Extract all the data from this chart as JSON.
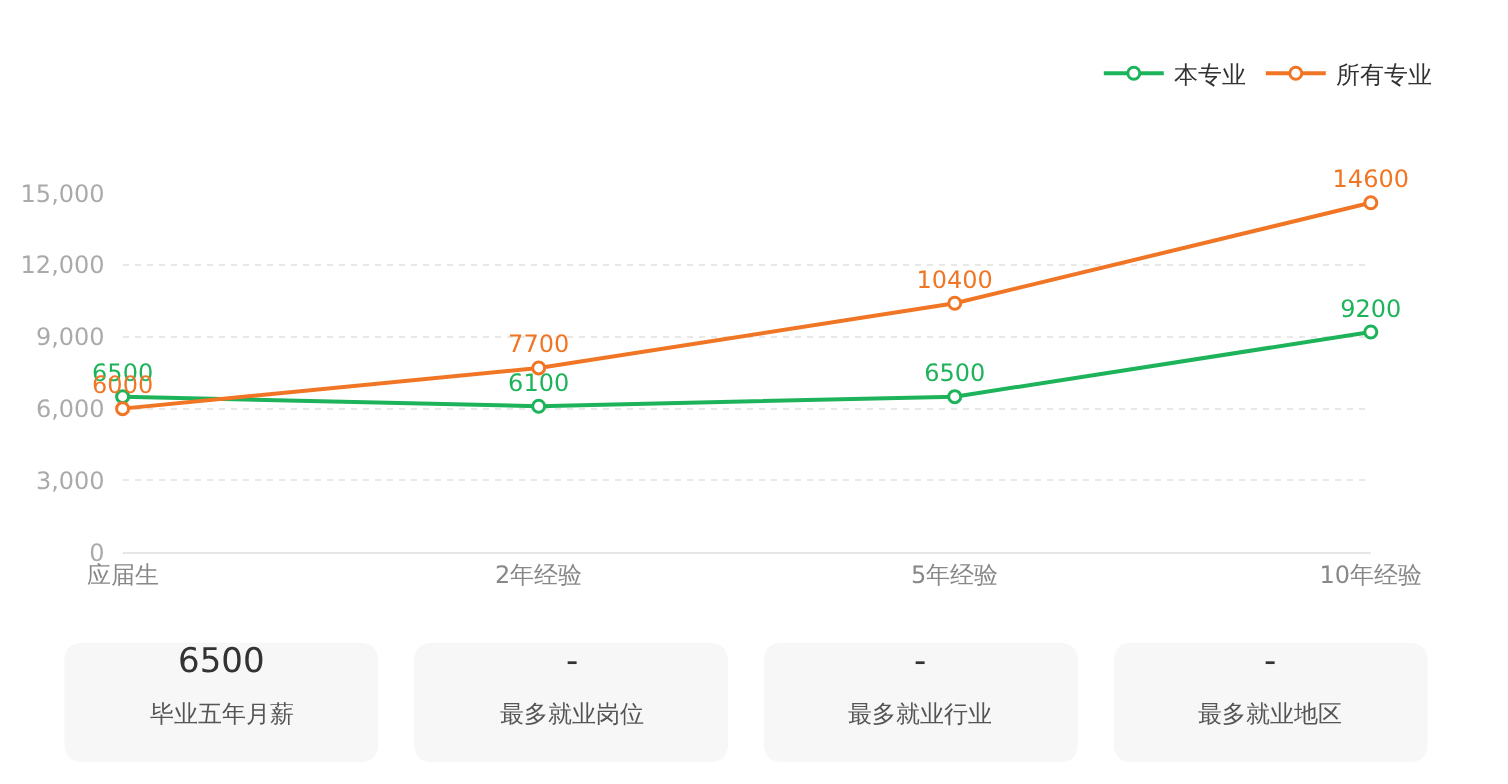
{
  "chart_data": [
    {
      "type": "line",
      "categories": [
        "应届生",
        "2年经验",
        "5年经验",
        "10年经验"
      ],
      "series": [
        {
          "name": "本专业",
          "color": "#1db35a",
          "values": [
            6500,
            6100,
            6500,
            9200
          ]
        },
        {
          "name": "所有专业",
          "color": "#f07524",
          "values": [
            6000,
            7700,
            10400,
            14600
          ]
        }
      ],
      "ylim": [
        0,
        15000
      ],
      "yticks": [
        0,
        {
          "value": 3000,
          "label": "3,000"
        },
        {
          "value": 6000,
          "label": "6,000"
        },
        {
          "value": 9000,
          "label": "9,000"
        },
        {
          "value": 12000,
          "label": "12,000"
        },
        {
          "value": 15000,
          "label": "15,000"
        }
      ],
      "grid": "y",
      "legend": "top right",
      "marker": "circle",
      "line_style": "solid",
      "data_labels": true
    },
    {
      "type": "other",
      "title": "6500",
      "subtitle": "毕业五年月薪"
    },
    {
      "type": "other",
      "title": "-",
      "subtitle": "最多就业岗位"
    },
    {
      "type": "other",
      "title": "-",
      "subtitle": "最多就业行业"
    },
    {
      "type": "other",
      "title": "-",
      "subtitle": "最多就业地区"
    }
  ]
}
